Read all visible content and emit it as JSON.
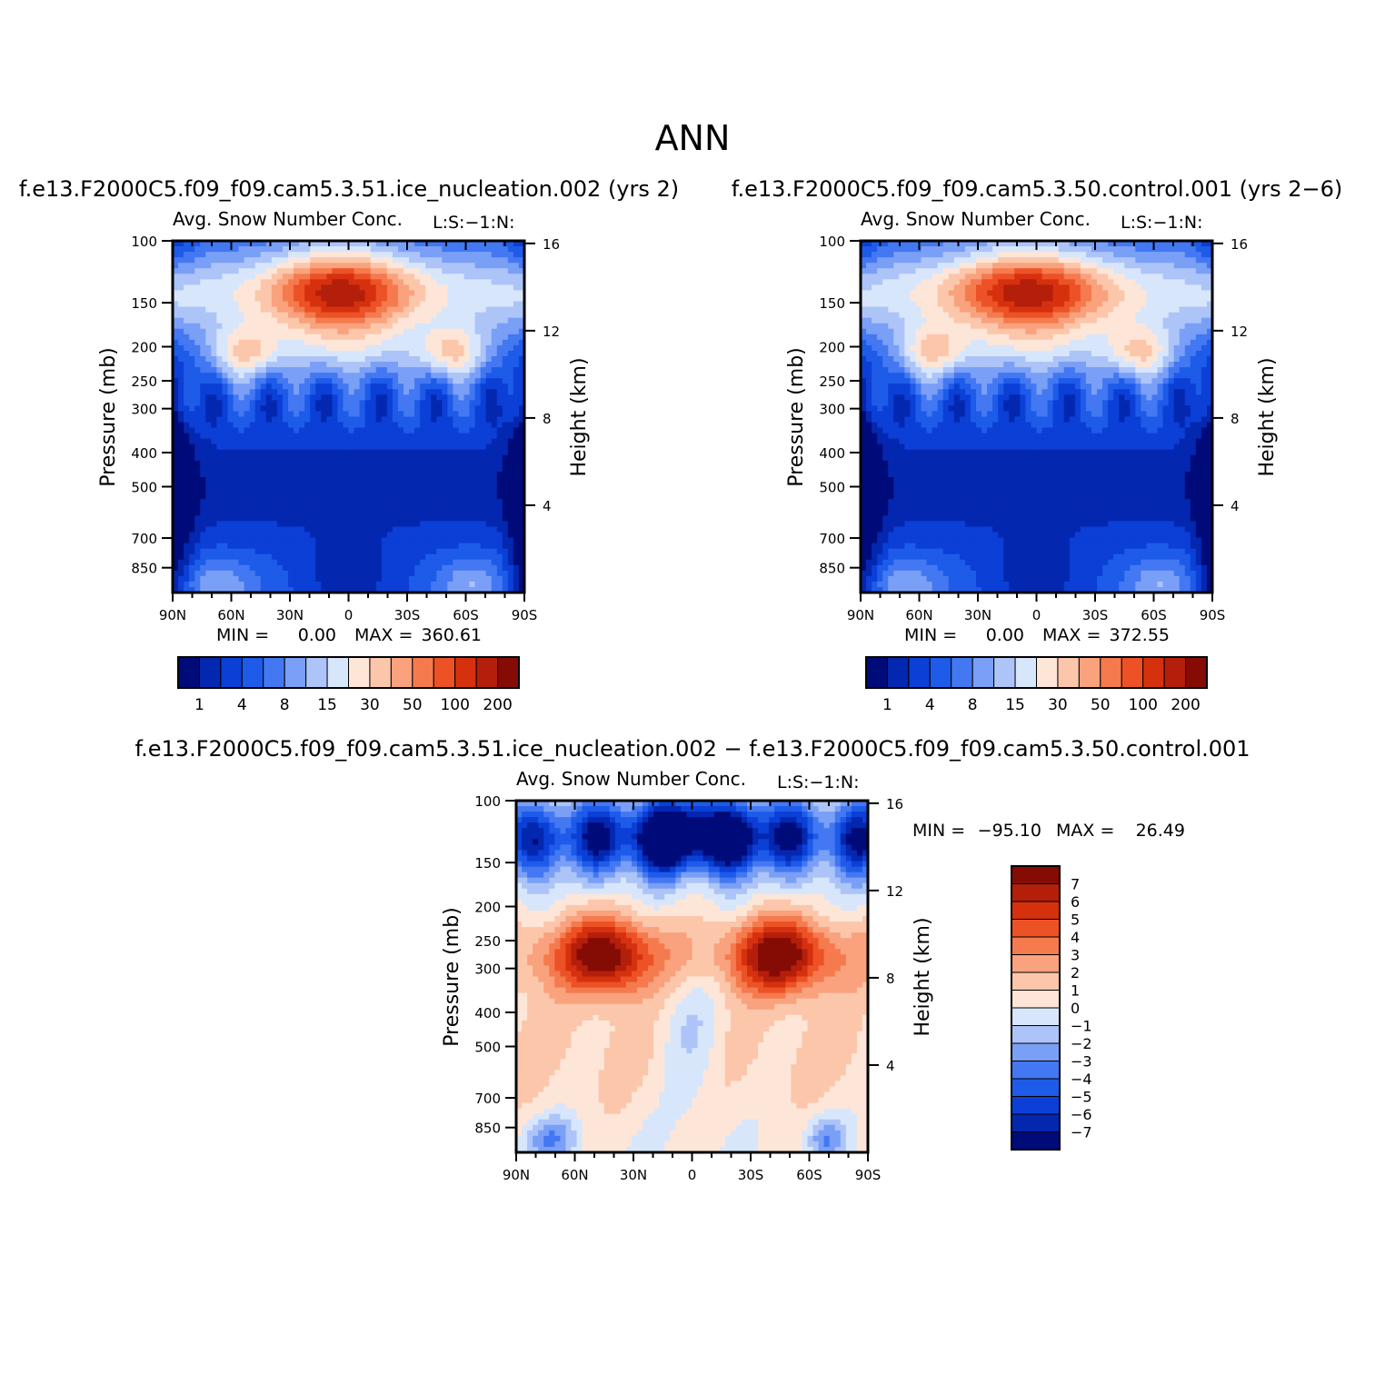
{
  "main_title": "ANN",
  "colors": {
    "diverging": [
      "#000b7a",
      "#0427b0",
      "#0b3fd6",
      "#1d5be8",
      "#4378f2",
      "#7a9ff6",
      "#adc4f8",
      "#d8e6fb",
      "#fde6d8",
      "#fcc6ab",
      "#f9a27d",
      "#f57a4e",
      "#ec5226",
      "#d6310e",
      "#b31f0a",
      "#850c04"
    ]
  },
  "chart_data": [
    {
      "type": "heatmap",
      "title": "f.e13.F2000C5.f09_f09.cam5.3.51.ice_nucleation.002 (yrs 2)",
      "subtitle": "Avg. Snow Number Conc.",
      "units_label": "L:S:−1:N:",
      "ylabel": "Pressure (mb)",
      "ylabel_right": "Height (km)",
      "pressure_ticks": [
        100,
        150,
        200,
        250,
        300,
        400,
        500,
        700,
        850
      ],
      "height_ticks": [
        16,
        12,
        8,
        4
      ],
      "x_ticks": [
        "90N",
        "60N",
        "30N",
        "0",
        "30S",
        "60S",
        "90S"
      ],
      "min_label": "MIN =",
      "min_value": "0.00",
      "max_label": "MAX =",
      "max_value": "360.61",
      "colorbar_labels": [
        "1",
        "4",
        "8",
        "15",
        "30",
        "50",
        "100",
        "200"
      ],
      "variant": "test"
    },
    {
      "type": "heatmap",
      "title": "f.e13.F2000C5.f09_f09.cam5.3.50.control.001 (yrs 2−6)",
      "subtitle": "Avg. Snow Number Conc.",
      "units_label": "L:S:−1:N:",
      "ylabel": "Pressure (mb)",
      "ylabel_right": "Height (km)",
      "pressure_ticks": [
        100,
        150,
        200,
        250,
        300,
        400,
        500,
        700,
        850
      ],
      "height_ticks": [
        16,
        12,
        8,
        4
      ],
      "x_ticks": [
        "90N",
        "60N",
        "30N",
        "0",
        "30S",
        "60S",
        "90S"
      ],
      "min_label": "MIN =",
      "min_value": "0.00",
      "max_label": "MAX =",
      "max_value": "372.55",
      "colorbar_labels": [
        "1",
        "4",
        "8",
        "15",
        "30",
        "50",
        "100",
        "200"
      ],
      "variant": "control"
    },
    {
      "type": "heatmap",
      "title": "f.e13.F2000C5.f09_f09.cam5.3.51.ice_nucleation.002 − f.e13.F2000C5.f09_f09.cam5.3.50.control.001",
      "subtitle": "Avg. Snow Number Conc.",
      "units_label": "L:S:−1:N:",
      "ylabel": "Pressure (mb)",
      "ylabel_right": "Height (km)",
      "pressure_ticks": [
        100,
        150,
        200,
        250,
        300,
        400,
        500,
        700,
        850
      ],
      "height_ticks": [
        16,
        12,
        8,
        4
      ],
      "x_ticks": [
        "90N",
        "60N",
        "30N",
        "0",
        "30S",
        "60S",
        "90S"
      ],
      "min_label": "MIN =",
      "min_value": "−95.10",
      "max_label": "MAX =",
      "max_value": "26.49",
      "colorbar_labels": [
        "7",
        "6",
        "5",
        "4",
        "3",
        "2",
        "1",
        "0",
        "−1",
        "−2",
        "−3",
        "−4",
        "−5",
        "−6",
        "−7"
      ],
      "variant": "diff"
    }
  ]
}
